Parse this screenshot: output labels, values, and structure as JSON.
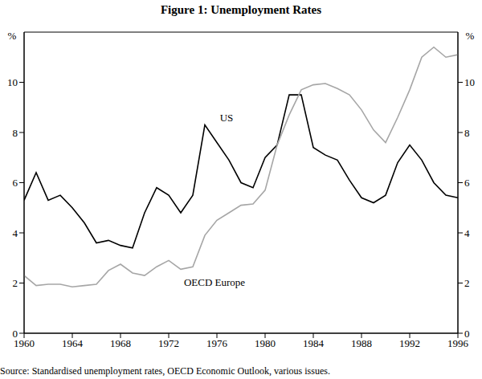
{
  "chart_data": {
    "type": "line",
    "title": "Figure 1: Unemployment Rates",
    "ylabel": "%",
    "source": "Source: Standardised unemployment rates, OECD Economic Outlook, various issues.",
    "x": [
      1960,
      1961,
      1962,
      1963,
      1964,
      1965,
      1966,
      1967,
      1968,
      1969,
      1970,
      1971,
      1972,
      1973,
      1974,
      1975,
      1976,
      1977,
      1978,
      1979,
      1980,
      1981,
      1982,
      1983,
      1984,
      1985,
      1986,
      1987,
      1988,
      1989,
      1990,
      1991,
      1992,
      1993,
      1994,
      1995,
      1996
    ],
    "series": [
      {
        "name": "US",
        "color": "#000000",
        "values": [
          5.3,
          6.4,
          5.3,
          5.5,
          5.0,
          4.4,
          3.6,
          3.7,
          3.5,
          3.4,
          4.8,
          5.8,
          5.5,
          4.8,
          5.5,
          8.3,
          7.6,
          6.9,
          6.0,
          5.8,
          7.0,
          7.5,
          9.5,
          9.5,
          7.4,
          7.1,
          6.9,
          6.1,
          5.4,
          5.2,
          5.5,
          6.8,
          7.5,
          6.9,
          6.0,
          5.5,
          5.4
        ]
      },
      {
        "name": "OECD Europe",
        "color": "#a6a6a6",
        "values": [
          2.3,
          1.9,
          1.95,
          1.95,
          1.85,
          1.9,
          1.95,
          2.5,
          2.75,
          2.4,
          2.3,
          2.65,
          2.9,
          2.55,
          2.65,
          3.9,
          4.5,
          4.8,
          5.1,
          5.15,
          5.7,
          7.5,
          8.7,
          9.7,
          9.9,
          9.95,
          9.75,
          9.5,
          8.9,
          8.1,
          7.6,
          8.6,
          9.7,
          11.0,
          11.4,
          11.0,
          11.1
        ]
      }
    ],
    "annotations": [
      {
        "text": "US",
        "x": 1976.8,
        "y": 8.6
      },
      {
        "text": "OECD Europe",
        "x": 1975.8,
        "y": 2.05
      }
    ],
    "xlim": [
      1960,
      1996
    ],
    "xticks": [
      1960,
      1964,
      1968,
      1972,
      1976,
      1980,
      1984,
      1988,
      1992,
      1996
    ],
    "ylim": [
      0,
      12
    ],
    "yticks": [
      0,
      2,
      4,
      6,
      8,
      10
    ],
    "grid": false
  }
}
